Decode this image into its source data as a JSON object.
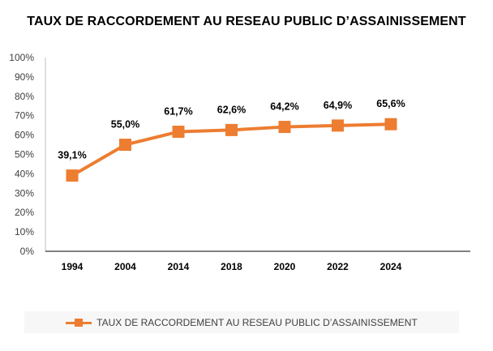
{
  "chart_data": {
    "type": "line",
    "title": "TAUX DE RACCORDEMENT AU RESEAU PUBLIC D’ASSAINISSEMENT",
    "xlabel": "",
    "ylabel": "",
    "categories": [
      "1994",
      "2004",
      "2014",
      "2018",
      "2020",
      "2022",
      "2024"
    ],
    "series": [
      {
        "name": "TAUX DE RACCORDEMENT AU RESEAU PUBLIC D’ASSAINISSEMENT",
        "values": [
          39.1,
          55.0,
          61.7,
          62.6,
          64.2,
          64.9,
          65.6
        ],
        "labels": [
          "39,1%",
          "55,0%",
          "61,7%",
          "62,6%",
          "64,2%",
          "64,9%",
          "65,6%"
        ],
        "color": "#ed7d31"
      }
    ],
    "ylim": [
      0,
      100
    ],
    "yticks": [
      "0%",
      "10%",
      "20%",
      "30%",
      "40%",
      "50%",
      "60%",
      "70%",
      "80%",
      "90%",
      "100%"
    ],
    "grid": false,
    "legend": "bottom"
  }
}
